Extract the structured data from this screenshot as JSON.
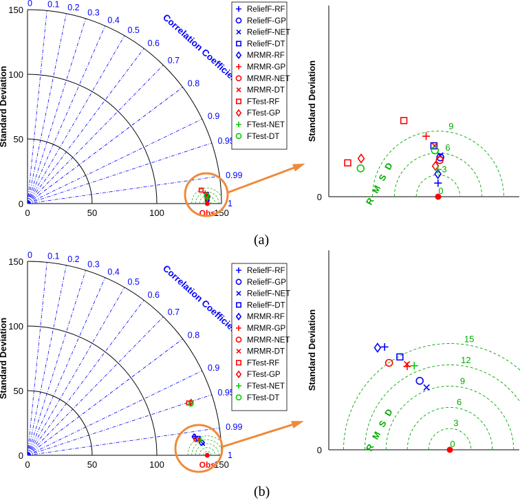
{
  "captions": [
    "(a)",
    "(b)"
  ],
  "chart_data": [
    {
      "panel": "(a)",
      "type": "scatter",
      "subtype": "taylor-diagram",
      "ylabel": "Standard Deviation",
      "arc_label": "Correlation Coefficient",
      "rmsd_label": "R M S D",
      "ref_label": "Obs",
      "std_ticks": [
        0,
        50,
        100,
        150
      ],
      "corr_ticks": [
        "0",
        "0.1",
        "0.2",
        "0.3",
        "0.4",
        "0.5",
        "0.6",
        "0.7",
        "0.8",
        "0.9",
        "0.95",
        "0.99",
        "1"
      ],
      "std_range": [
        0,
        150
      ],
      "reference_std": 139,
      "zoom_rmsd_ticks": [
        "0",
        "3",
        "6",
        "9"
      ],
      "legend_position": "top-right",
      "series": [
        {
          "name": "ReliefF-RF",
          "marker": "plus",
          "color": "#0000ff",
          "std": 139.0,
          "corr": 0.99991
        },
        {
          "name": "ReliefF-GP",
          "marker": "circle",
          "color": "#0000ff",
          "std": 139.4,
          "corr": 0.99925
        },
        {
          "name": "ReliefF-NET",
          "marker": "x",
          "color": "#0000ff",
          "std": 139.4,
          "corr": 0.99918
        },
        {
          "name": "ReliefF-DT",
          "marker": "square",
          "color": "#0000ff",
          "std": 138.6,
          "corr": 0.99873
        },
        {
          "name": "MRMR-RF",
          "marker": "diamond",
          "color": "#0000ff",
          "std": 139.0,
          "corr": 0.99975
        },
        {
          "name": "MRMR-GP",
          "marker": "plus",
          "color": "#ff0000",
          "std": 137.6,
          "corr": 0.99818
        },
        {
          "name": "MRMR-NET",
          "marker": "circle",
          "color": "#ff0000",
          "std": 139.3,
          "corr": 0.99935
        },
        {
          "name": "MRMR-DT",
          "marker": "x",
          "color": "#ff0000",
          "std": 138.7,
          "corr": 0.99873
        },
        {
          "name": "FTest-RF",
          "marker": "square",
          "color": "#ff0000",
          "std": 134.7,
          "corr": 0.99699
        },
        {
          "name": "FTest-GP",
          "marker": "diamond",
          "color": "#ff0000",
          "std": 138.7,
          "corr": 0.99954
        },
        {
          "name": "FTest-NET",
          "marker": "plus",
          "color": "#00cc00",
          "std": 139.0,
          "corr": 0.99964
        },
        {
          "name": "FTest-DT",
          "marker": "circle",
          "color": "#00cc00",
          "std": 138.7,
          "corr": 0.99895
        }
      ]
    },
    {
      "panel": "(b)",
      "type": "scatter",
      "subtype": "taylor-diagram",
      "ylabel": "Standard Deviation",
      "arc_label": "Correlation Coefficient",
      "rmsd_label": "R M S D",
      "ref_label": "Obs",
      "std_ticks": [
        0,
        50,
        100,
        150
      ],
      "corr_ticks": [
        "0",
        "0.1",
        "0.2",
        "0.3",
        "0.4",
        "0.5",
        "0.6",
        "0.7",
        "0.8",
        "0.9",
        "0.95",
        "0.99",
        "1"
      ],
      "std_range": [
        0,
        150
      ],
      "reference_std": 139,
      "zoom_rmsd_ticks": [
        "0",
        "3",
        "6",
        "9",
        "12",
        "15"
      ],
      "legend_position": "top-right",
      "series": [
        {
          "name": "ReliefF-RF",
          "marker": "plus",
          "color": "#0000ff",
          "std": 130.6,
          "corr": 0.9938
        },
        {
          "name": "ReliefF-GP",
          "marker": "circle",
          "color": "#0000ff",
          "std": 135.1,
          "corr": 0.9974
        },
        {
          "name": "ReliefF-NET",
          "marker": "x",
          "color": "#0000ff",
          "std": 136.0,
          "corr": 0.9979
        },
        {
          "name": "ReliefF-DT",
          "marker": "square",
          "color": "#0000ff",
          "std": 132.6,
          "corr": 0.9951
        },
        {
          "name": "MRMR-RF",
          "marker": "diamond",
          "color": "#0000ff",
          "std": 129.6,
          "corr": 0.9938
        },
        {
          "name": "MRMR-GP",
          "marker": "plus",
          "color": "#ff0000",
          "std": 133.5,
          "corr": 0.9961
        },
        {
          "name": "MRMR-NET",
          "marker": "circle",
          "color": "#ff0000",
          "std": 131.0,
          "corr": 0.9956
        },
        {
          "name": "MRMR-DT",
          "marker": "x",
          "color": "#ff0000",
          "std": 133.5,
          "corr": 0.9959
        },
        {
          "name": "FTest-RF",
          "marker": "square",
          "color": "#ff0000",
          "std": 131.0,
          "corr": 0.951
        },
        {
          "name": "FTest-GP",
          "marker": "diamond",
          "color": "#ff0000",
          "std": 133.0,
          "corr": 0.951
        },
        {
          "name": "FTest-NET",
          "marker": "plus",
          "color": "#00cc00",
          "std": 134.5,
          "corr": 0.9961
        },
        {
          "name": "FTest-DT",
          "marker": "circle",
          "color": "#00cc00",
          "std": 132.5,
          "corr": 0.954
        }
      ]
    }
  ]
}
